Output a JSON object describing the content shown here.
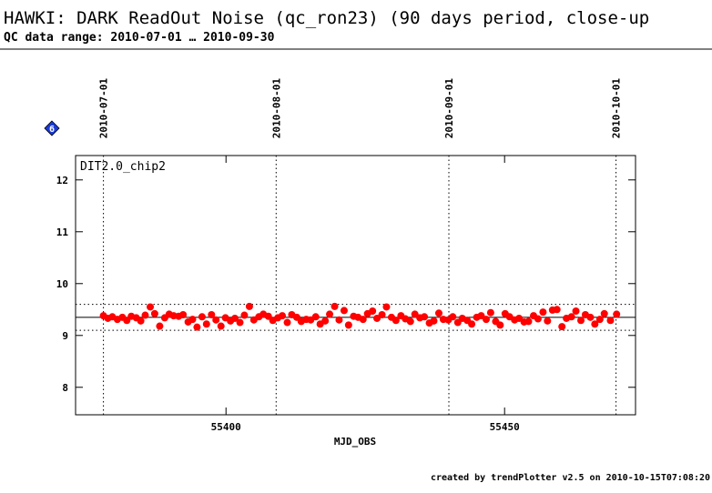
{
  "header": {
    "title": "HAWKI: DARK ReadOut Noise (qc_ron23) (90 days period, close-up",
    "subtitle": "QC data range: 2010-07-01 … 2010-09-30",
    "badge": "6"
  },
  "chart_data": {
    "type": "scatter",
    "panel_label": "DIT2.0_chip2",
    "x_label": "MJD_OBS",
    "color": "#ff0000",
    "x": [
      55378.0,
      55378.8,
      55379.6,
      55380.5,
      55381.4,
      55382.2,
      55383.0,
      55383.9,
      55384.7,
      55385.5,
      55386.4,
      55387.2,
      55388.1,
      55389.0,
      55389.8,
      55390.6,
      55391.5,
      55392.3,
      55393.2,
      55394.0,
      55394.8,
      55395.7,
      55396.5,
      55397.4,
      55398.2,
      55399.1,
      55399.9,
      55400.8,
      55401.6,
      55402.5,
      55403.3,
      55404.2,
      55405.0,
      55405.9,
      55406.7,
      55407.6,
      55408.4,
      55409.3,
      55410.1,
      55411.0,
      55411.8,
      55412.7,
      55413.5,
      55414.4,
      55415.2,
      55416.1,
      55416.9,
      55417.8,
      55418.6,
      55419.5,
      55420.3,
      55421.2,
      55422.0,
      55422.9,
      55423.7,
      55424.6,
      55425.4,
      55426.3,
      55427.1,
      55428.0,
      55428.8,
      55429.7,
      55430.5,
      55431.4,
      55432.2,
      55433.1,
      55433.9,
      55434.8,
      55435.6,
      55436.5,
      55437.3,
      55438.2,
      55439.0,
      55439.9,
      55440.7,
      55441.6,
      55442.4,
      55443.3,
      55444.1,
      55445.0,
      55445.8,
      55446.7,
      55447.5,
      55448.4,
      55449.2,
      55450.1,
      55450.9,
      55451.8,
      55452.6,
      55453.5,
      55454.3,
      55455.2,
      55456.0,
      55456.9,
      55457.7,
      55458.6,
      55459.4,
      55460.3,
      55461.1,
      55462.0,
      55462.8,
      55463.7,
      55464.5,
      55465.4,
      55466.2,
      55467.1,
      55467.9,
      55469.0,
      55470.1
    ],
    "values": [
      9.38,
      9.33,
      9.36,
      9.31,
      9.35,
      9.29,
      9.37,
      9.34,
      9.28,
      9.39,
      9.55,
      9.42,
      9.18,
      9.34,
      9.41,
      9.38,
      9.37,
      9.4,
      9.26,
      9.31,
      9.16,
      9.36,
      9.22,
      9.4,
      9.3,
      9.18,
      9.34,
      9.28,
      9.33,
      9.25,
      9.39,
      9.56,
      9.3,
      9.36,
      9.41,
      9.37,
      9.29,
      9.34,
      9.38,
      9.25,
      9.4,
      9.35,
      9.27,
      9.31,
      9.3,
      9.36,
      9.22,
      9.28,
      9.41,
      9.56,
      9.3,
      9.48,
      9.2,
      9.37,
      9.35,
      9.31,
      9.42,
      9.47,
      9.33,
      9.4,
      9.55,
      9.35,
      9.29,
      9.38,
      9.32,
      9.27,
      9.41,
      9.34,
      9.36,
      9.24,
      9.28,
      9.43,
      9.31,
      9.3,
      9.36,
      9.25,
      9.33,
      9.29,
      9.22,
      9.35,
      9.38,
      9.31,
      9.44,
      9.27,
      9.2,
      9.42,
      9.36,
      9.3,
      9.33,
      9.26,
      9.27,
      9.38,
      9.32,
      9.45,
      9.28,
      9.49,
      9.5,
      9.17,
      9.33,
      9.36,
      9.47,
      9.29,
      9.4,
      9.35,
      9.22,
      9.31,
      9.42,
      9.29,
      9.41
    ],
    "xlim": [
      55373,
      55473.5
    ],
    "ylim": [
      7.47,
      12.47
    ],
    "xticks": [
      55400,
      55450
    ],
    "yticks": [
      8,
      9,
      10,
      11,
      12
    ],
    "x2ticks": [
      {
        "value": 55378,
        "label": "2010-07-01"
      },
      {
        "value": 55409,
        "label": "2010-08-01"
      },
      {
        "value": 55440,
        "label": "2010-09-01"
      },
      {
        "value": 55470,
        "label": "2010-10-01"
      }
    ],
    "hlines": [
      {
        "value": 9.35,
        "style": "solid"
      },
      {
        "value": 9.6,
        "style": "dotted"
      },
      {
        "value": 9.1,
        "style": "dotted"
      }
    ]
  },
  "footer": "created by trendPlotter v2.5 on 2010-10-15T07:08:20"
}
